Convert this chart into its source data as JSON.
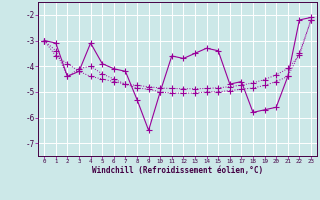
{
  "xlabel": "Windchill (Refroidissement éolien,°C)",
  "bg_color": "#cce8e8",
  "line_color": "#990099",
  "grid_color": "#ffffff",
  "x_data": [
    0,
    1,
    2,
    3,
    4,
    5,
    6,
    7,
    8,
    9,
    10,
    11,
    12,
    13,
    14,
    15,
    16,
    17,
    18,
    19,
    20,
    21,
    22,
    23
  ],
  "y_main": [
    -3.0,
    -3.1,
    -4.4,
    -4.2,
    -3.1,
    -3.9,
    -4.1,
    -4.2,
    -5.3,
    -6.5,
    -5.0,
    -3.6,
    -3.7,
    -3.5,
    -3.3,
    -3.4,
    -4.7,
    -4.6,
    -5.8,
    -5.7,
    -5.6,
    -4.4,
    -2.2,
    -2.1
  ],
  "y_line2": [
    -3.0,
    -3.4,
    -4.4,
    -4.1,
    -4.0,
    -4.3,
    -4.5,
    -4.7,
    -4.85,
    -4.9,
    -5.0,
    -5.05,
    -5.05,
    -5.05,
    -5.0,
    -5.0,
    -4.95,
    -4.9,
    -4.85,
    -4.75,
    -4.6,
    -4.4,
    -3.5,
    -2.2
  ],
  "y_line3": [
    -3.0,
    -3.6,
    -3.9,
    -4.2,
    -4.4,
    -4.5,
    -4.6,
    -4.7,
    -4.75,
    -4.8,
    -4.85,
    -4.87,
    -4.88,
    -4.88,
    -4.87,
    -4.84,
    -4.8,
    -4.74,
    -4.65,
    -4.52,
    -4.34,
    -4.09,
    -3.58,
    -2.2
  ],
  "ylim": [
    -7.5,
    -1.5
  ],
  "xlim": [
    -0.5,
    23.5
  ],
  "yticks": [
    -7,
    -6,
    -5,
    -4,
    -3,
    -2
  ],
  "xticks": [
    0,
    1,
    2,
    3,
    4,
    5,
    6,
    7,
    8,
    9,
    10,
    11,
    12,
    13,
    14,
    15,
    16,
    17,
    18,
    19,
    20,
    21,
    22,
    23
  ]
}
